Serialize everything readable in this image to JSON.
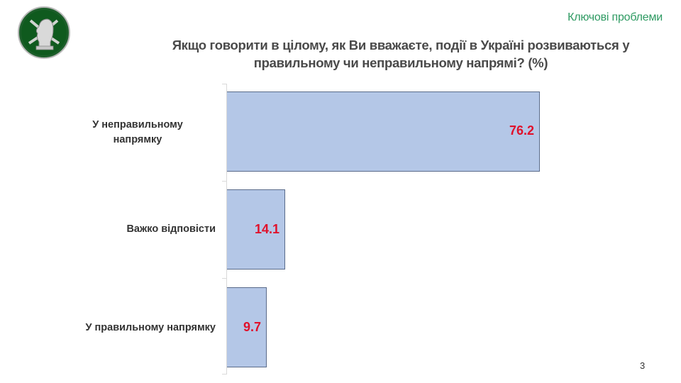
{
  "header": {
    "section_title": "Ключові проблеми",
    "logo_icon": "knight-chess-emblem-icon"
  },
  "chart_data": {
    "type": "bar",
    "orientation": "horizontal",
    "title": "Якщо говорити в цілому, як Ви вважаєте, події в Україні розвиваються у правильному чи неправильному напрямі? (%)",
    "title_lines": [
      "Якщо говорити в цілому, як Ви вважаєте, події в Україні розвиваються у",
      "правильному чи неправильному напрямі? (%)"
    ],
    "categories": [
      "У неправильному напрямку",
      "Важко відповісти",
      "У правильному напрямку"
    ],
    "category_lines": [
      [
        "У неправильному",
        "напрямку"
      ],
      [
        "Важко відповісти"
      ],
      [
        "У правильному напрямку"
      ]
    ],
    "values": [
      76.2,
      14.1,
      9.7
    ],
    "value_labels": [
      "76.2",
      "14.1",
      "9.7"
    ],
    "xlabel": "",
    "ylabel": "",
    "xlim": [
      0,
      100
    ],
    "grid": false,
    "legend": null,
    "colors": {
      "bar_fill": "#b4c7e7",
      "bar_border": "#5a6b8a",
      "value_label": "#e0112b",
      "section_title": "#2e9a62"
    }
  },
  "footer": {
    "page_number": "3"
  }
}
